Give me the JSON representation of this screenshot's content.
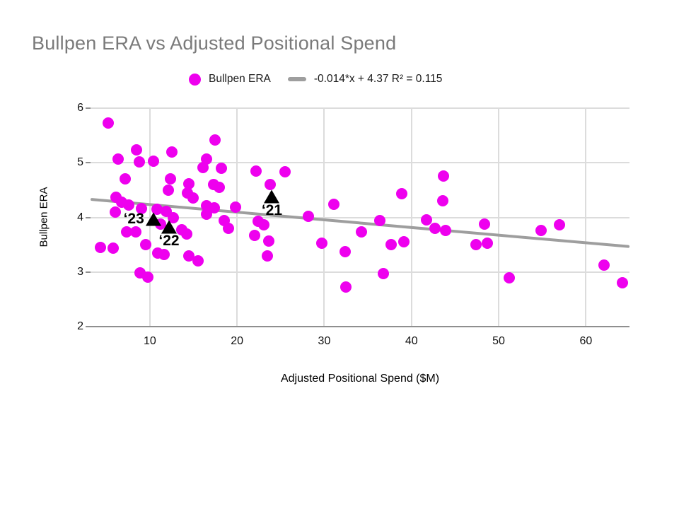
{
  "title": "Bullpen ERA vs Adjusted Positional Spend",
  "legend": {
    "series_label": "Bullpen ERA",
    "trend_label": "-0.014*x + 4.37 R² = 0.115"
  },
  "colors": {
    "accent": "#ee00ee",
    "trend": "#9e9e9e",
    "title_text": "#7a7a7a",
    "grid": "#dcdcdc",
    "axis": "#8f8f8f",
    "annotation": "#000000"
  },
  "chart_data": {
    "type": "scatter",
    "title": "Bullpen ERA vs Adjusted Positional Spend",
    "xlabel": "Adjusted Positional Spend ($M)",
    "ylabel": "Bullpen ERA",
    "xlim": [
      3.2,
      65.0
    ],
    "ylim": [
      2,
      6
    ],
    "x_ticks": [
      10,
      20,
      30,
      40,
      50,
      60
    ],
    "y_ticks": [
      2,
      3,
      4,
      5,
      6
    ],
    "grid": true,
    "legend_position": "top",
    "series": [
      {
        "name": "Bullpen ERA",
        "points": [
          [
            5.2,
            5.73
          ],
          [
            8.5,
            5.24
          ],
          [
            6.4,
            5.07
          ],
          [
            8.8,
            5.01
          ],
          [
            10.4,
            5.03
          ],
          [
            12.5,
            5.2
          ],
          [
            17.5,
            5.42
          ],
          [
            16.5,
            5.07
          ],
          [
            16.1,
            4.91
          ],
          [
            18.2,
            4.9
          ],
          [
            7.2,
            4.71
          ],
          [
            12.4,
            4.71
          ],
          [
            12.1,
            4.5
          ],
          [
            14.5,
            4.62
          ],
          [
            14.3,
            4.45
          ],
          [
            15.0,
            4.36
          ],
          [
            17.3,
            4.6
          ],
          [
            18.0,
            4.55
          ],
          [
            6.1,
            4.37
          ],
          [
            6.8,
            4.28
          ],
          [
            7.6,
            4.23
          ],
          [
            6.0,
            4.1
          ],
          [
            9.0,
            4.16
          ],
          [
            10.8,
            4.15
          ],
          [
            11.9,
            4.11
          ],
          [
            12.7,
            4.0
          ],
          [
            11.2,
            3.88
          ],
          [
            16.5,
            4.21
          ],
          [
            17.4,
            4.18
          ],
          [
            16.5,
            4.06
          ],
          [
            19.8,
            4.19
          ],
          [
            18.5,
            3.94
          ],
          [
            19.0,
            3.8
          ],
          [
            7.3,
            3.74
          ],
          [
            8.4,
            3.73
          ],
          [
            4.3,
            3.45
          ],
          [
            5.8,
            3.44
          ],
          [
            9.5,
            3.5
          ],
          [
            10.9,
            3.35
          ],
          [
            11.6,
            3.32
          ],
          [
            13.7,
            3.77
          ],
          [
            14.2,
            3.69
          ],
          [
            14.5,
            3.3
          ],
          [
            15.5,
            3.21
          ],
          [
            8.9,
            2.99
          ],
          [
            9.8,
            2.91
          ],
          [
            22.2,
            4.85
          ],
          [
            25.5,
            4.84
          ],
          [
            23.8,
            4.6
          ],
          [
            22.4,
            3.93
          ],
          [
            23.1,
            3.87
          ],
          [
            22.0,
            3.67
          ],
          [
            23.6,
            3.56
          ],
          [
            23.5,
            3.3
          ],
          [
            28.2,
            4.02
          ],
          [
            31.1,
            4.24
          ],
          [
            29.7,
            3.53
          ],
          [
            32.4,
            3.37
          ],
          [
            34.3,
            3.73
          ],
          [
            36.4,
            3.94
          ],
          [
            36.8,
            2.97
          ],
          [
            32.5,
            2.73
          ],
          [
            37.7,
            3.5
          ],
          [
            39.1,
            3.55
          ],
          [
            38.9,
            4.43
          ],
          [
            43.7,
            4.76
          ],
          [
            43.6,
            4.31
          ],
          [
            41.7,
            3.96
          ],
          [
            42.7,
            3.8
          ],
          [
            43.9,
            3.76
          ],
          [
            48.4,
            3.88
          ],
          [
            47.4,
            3.5
          ],
          [
            48.7,
            3.53
          ],
          [
            51.2,
            2.89
          ],
          [
            54.9,
            3.76
          ],
          [
            57.0,
            3.87
          ],
          [
            62.1,
            3.13
          ],
          [
            64.2,
            2.8
          ]
        ]
      }
    ],
    "trendline": {
      "slope": -0.014,
      "intercept": 4.37,
      "r_squared": "0.115",
      "equation": "-0.014*x + 4.37 R² = 0.115"
    },
    "annotations": [
      {
        "label": "‘21",
        "x": 24.0,
        "y": 4.38,
        "label_side": "below"
      },
      {
        "label": "‘22",
        "x": 12.2,
        "y": 3.83,
        "label_side": "below"
      },
      {
        "label": "‘23",
        "x": 10.4,
        "y": 3.97,
        "label_side": "left"
      }
    ]
  }
}
